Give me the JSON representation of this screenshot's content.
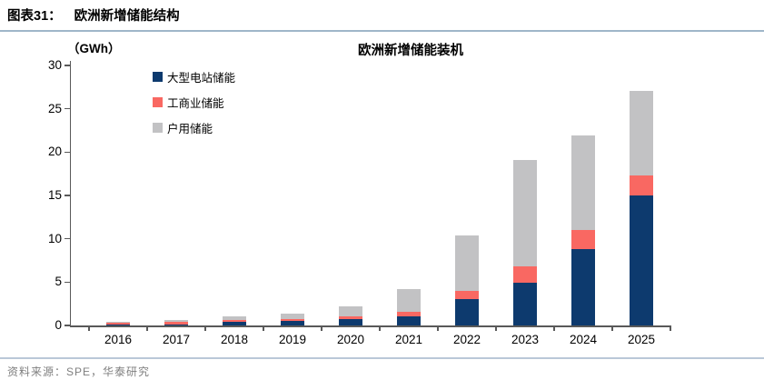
{
  "header": {
    "figure_label": "图表31：",
    "figure_title": "欧洲新增储能结构"
  },
  "chart": {
    "unit_label": "（GWh）",
    "title": "欧洲新增储能装机"
  },
  "chart_data": {
    "type": "bar",
    "stacked": true,
    "title": "欧洲新增储能装机",
    "unit": "GWh",
    "categories": [
      "2016",
      "2017",
      "2018",
      "2019",
      "2020",
      "2021",
      "2022",
      "2023",
      "2024",
      "2025"
    ],
    "series": [
      {
        "name": "大型电站储能",
        "color": "#0d3a6e",
        "values": [
          0.1,
          0.15,
          0.4,
          0.5,
          0.7,
          1.1,
          3.0,
          4.9,
          8.8,
          15.0
        ]
      },
      {
        "name": "工商业储能",
        "color": "#f96862",
        "values": [
          0.25,
          0.25,
          0.25,
          0.2,
          0.3,
          0.5,
          1.0,
          1.9,
          2.2,
          2.3
        ]
      },
      {
        "name": "户用储能",
        "color": "#c2c2c4",
        "values": [
          0.05,
          0.2,
          0.45,
          0.7,
          1.2,
          2.6,
          6.4,
          12.3,
          10.9,
          9.8
        ]
      }
    ],
    "totals": [
      0.4,
      0.6,
      1.1,
      1.4,
      2.2,
      4.2,
      10.4,
      19.1,
      21.9,
      27.1
    ],
    "ylim": [
      0,
      30
    ],
    "ytick_interval": 5,
    "yticks": [
      0,
      5,
      10,
      15,
      20,
      25,
      30
    ],
    "legend_position": "upper-left-inside",
    "grid": false
  },
  "footer": {
    "source_text": "资料来源：SPE，华泰研究"
  },
  "colors": {
    "header_rule": "#9fb6c9",
    "footer_rule": "#bac8d8",
    "axis": "#595959"
  }
}
